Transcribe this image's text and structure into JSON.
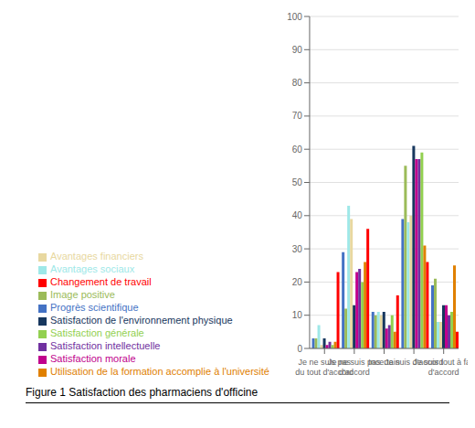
{
  "chart_data": {
    "type": "bar",
    "title": "Figure 1 Satisfaction des pharmaciens d'officine",
    "categories": [
      "Je ne suis pas\ndu tout d'accord",
      "Je ne suis pas\nd'accord",
      "Incertain",
      "Je suis d'accord",
      "Je suis tout à fait\nd'accord"
    ],
    "series": [
      {
        "name": "Progrès scientifique",
        "color": "#4472c4",
        "values": [
          3,
          29,
          11,
          39,
          19
        ]
      },
      {
        "name": "Image positive",
        "color": "#9bbb59",
        "values": [
          3,
          12,
          10,
          55,
          21
        ]
      },
      {
        "name": "Avantages sociaux",
        "color": "#9ee8e8",
        "values": [
          7,
          43,
          11,
          38,
          8
        ]
      },
      {
        "name": "Avantages financiers",
        "color": "#e8d8a0",
        "values": [
          1,
          39,
          10,
          40,
          8
        ]
      },
      {
        "name": "Satisfaction de l'environnement physique",
        "color": "#17375e",
        "values": [
          3,
          13,
          11,
          61,
          13
        ]
      },
      {
        "name": "Satisfaction morale",
        "color": "#c0008c",
        "values": [
          1,
          23,
          6,
          57,
          13
        ]
      },
      {
        "name": "Satisfaction intellectuelle",
        "color": "#7030a0",
        "values": [
          2,
          24,
          7,
          57,
          10
        ]
      },
      {
        "name": "Satisfaction générale",
        "color": "#92d050",
        "values": [
          1,
          20,
          10,
          59,
          11
        ]
      },
      {
        "name": "Utilisation de la formation accomplie à l'université",
        "color": "#e08000",
        "values": [
          2,
          26,
          5,
          31,
          25
        ]
      },
      {
        "name": "Changement de travail",
        "color": "#ff0000",
        "values": [
          23,
          36,
          16,
          26,
          5
        ]
      }
    ],
    "ylim": [
      0,
      100
    ],
    "yticks": [
      0,
      10,
      20,
      30,
      40,
      50,
      60,
      70,
      80,
      90,
      100
    ],
    "grid": true,
    "legend": "bottom"
  }
}
